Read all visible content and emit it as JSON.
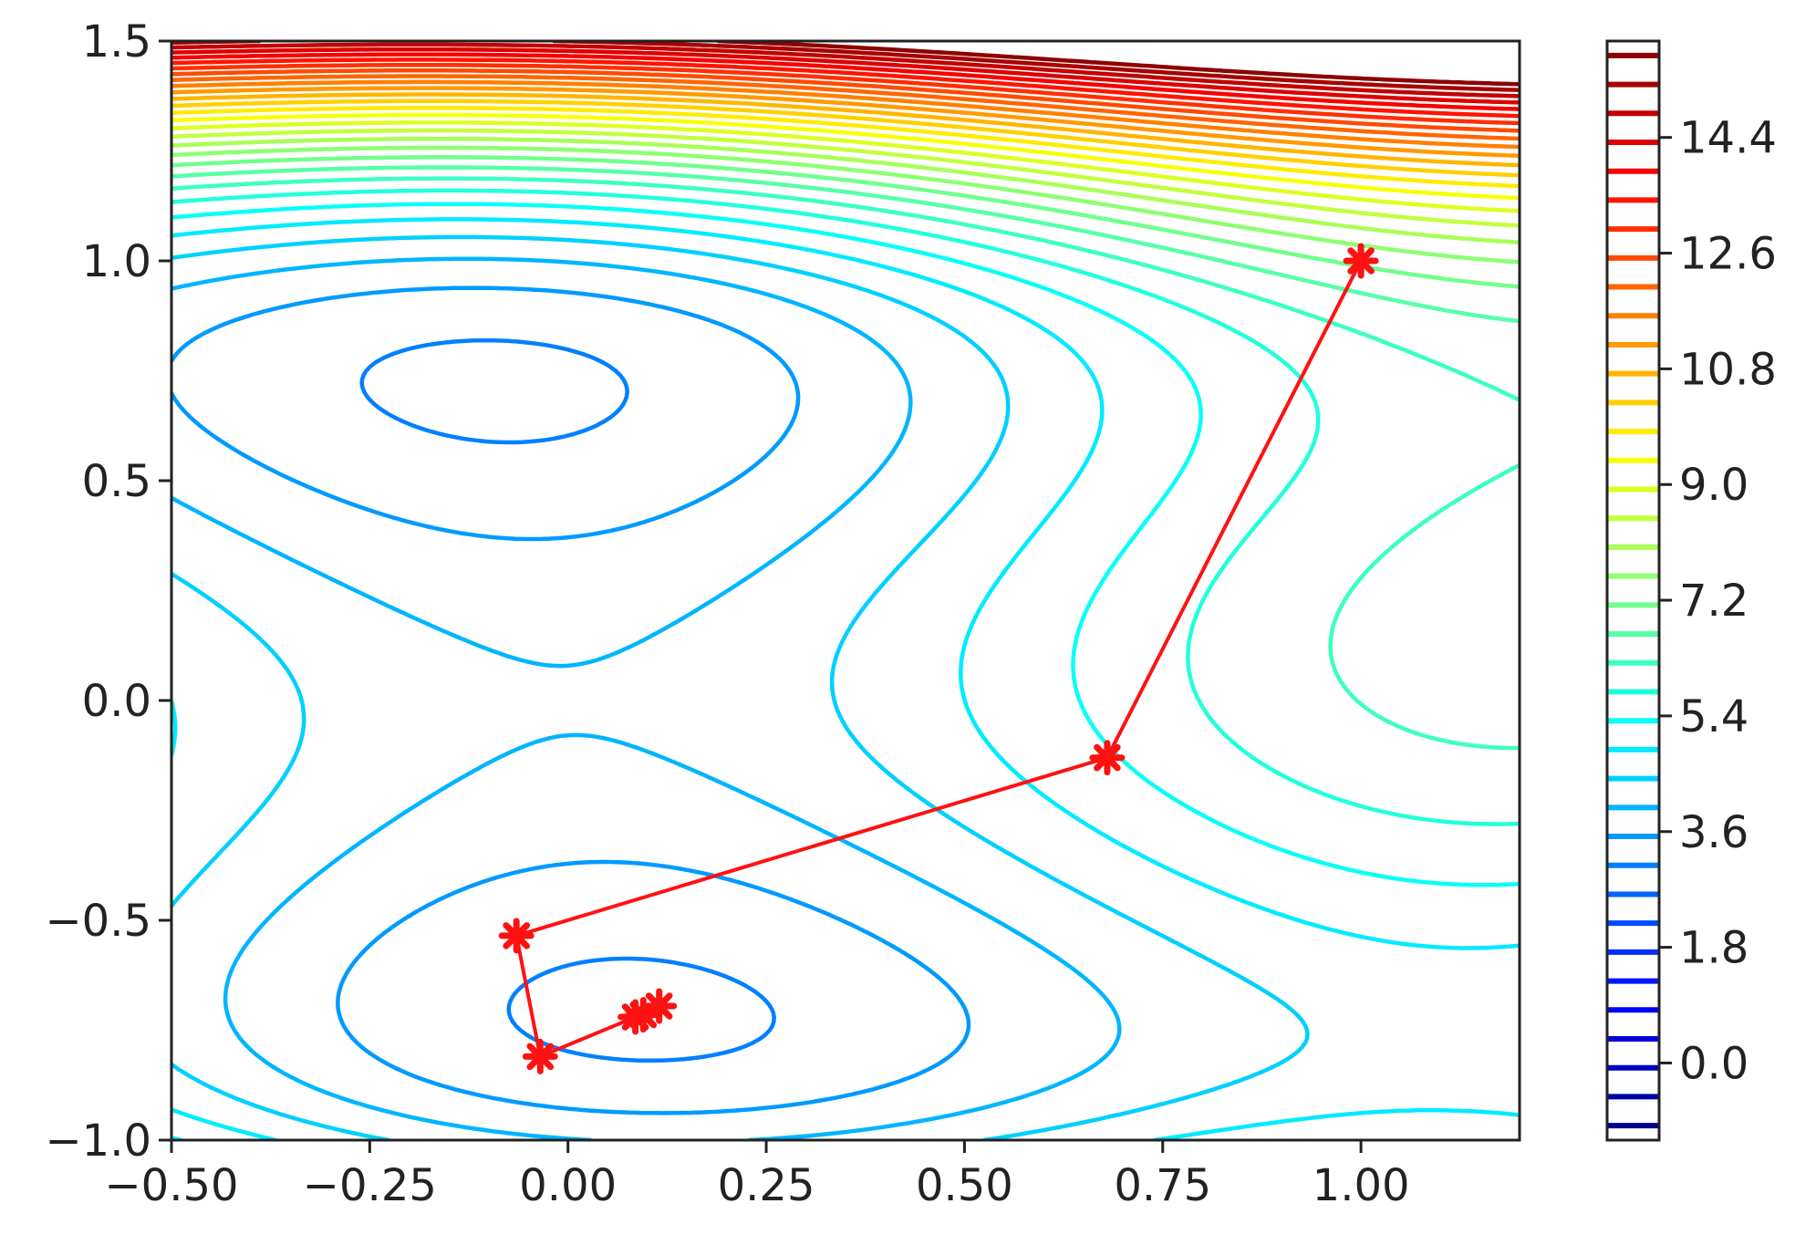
{
  "chart_data": {
    "type": "contour",
    "title": "",
    "xlabel": "",
    "ylabel": "",
    "xlim": [
      -0.5,
      1.2
    ],
    "ylim": [
      -1.0,
      1.5
    ],
    "grid": false,
    "x_ticks": [
      {
        "value": -0.5,
        "label": "−0.50"
      },
      {
        "value": -0.25,
        "label": "−0.25"
      },
      {
        "value": 0.0,
        "label": "0.00"
      },
      {
        "value": 0.25,
        "label": "0.25"
      },
      {
        "value": 0.5,
        "label": "0.50"
      },
      {
        "value": 0.75,
        "label": "0.75"
      },
      {
        "value": 1.0,
        "label": "1.00"
      }
    ],
    "y_ticks": [
      {
        "value": -1.0,
        "label": "−1.0"
      },
      {
        "value": -0.5,
        "label": "−0.5"
      },
      {
        "value": 0.0,
        "label": "0.0"
      },
      {
        "value": 0.5,
        "label": "0.5"
      },
      {
        "value": 1.0,
        "label": "1.0"
      },
      {
        "value": 1.5,
        "label": "1.5"
      }
    ],
    "colorbar": {
      "colormap": "jet",
      "range": [
        -1.2,
        15.9
      ],
      "tick_values": [
        0.0,
        1.8,
        3.6,
        5.4,
        7.2,
        9.0,
        10.8,
        12.6,
        14.4
      ],
      "tick_labels": [
        "0.0",
        "1.8",
        "3.6",
        "5.4",
        "7.2",
        "9.0",
        "10.8",
        "12.6",
        "14.4"
      ]
    },
    "series": [
      {
        "type": "line-with-markers",
        "marker": "star",
        "color": "#ff1111",
        "points": [
          {
            "x": 1.0,
            "y": 1.0
          },
          {
            "x": 0.68,
            "y": -0.13
          },
          {
            "x": -0.065,
            "y": -0.535
          },
          {
            "x": -0.035,
            "y": -0.81
          },
          {
            "x": 0.085,
            "y": -0.72
          },
          {
            "x": 0.095,
            "y": -0.715
          },
          {
            "x": 0.115,
            "y": -0.695
          }
        ]
      }
    ]
  }
}
